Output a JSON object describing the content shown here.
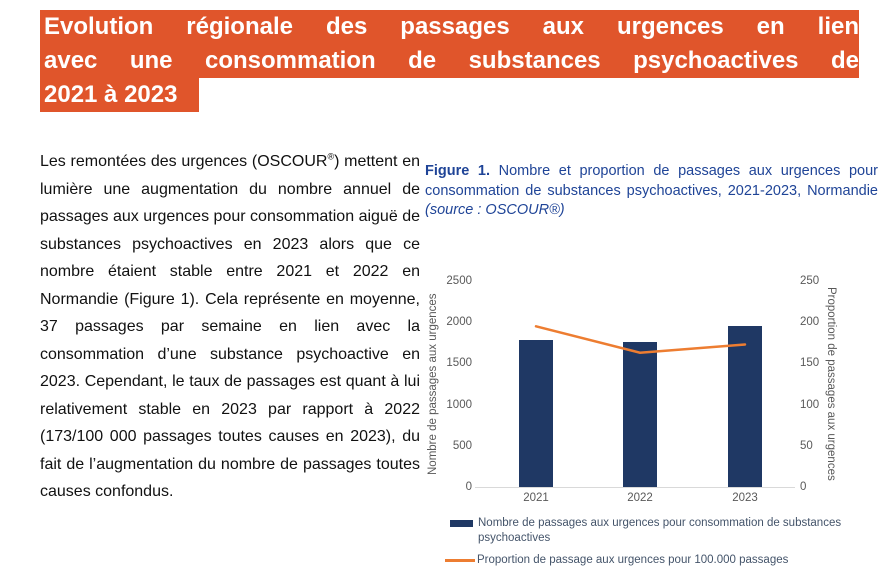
{
  "title": {
    "lines": [
      "Evolution régionale des passages aux urgences en lien",
      "avec une consommation de substances psychoactives de",
      "2021 à 2023"
    ],
    "highlight_color": "#E0552B",
    "text_color": "#FFFFFF"
  },
  "paragraph": {
    "part1": "Les remontées des urgences (OSCOUR",
    "sup": "®",
    "part2": ") mettent en lumière une augmentation du nombre annuel de passages aux urgences pour consommation aiguë de substances psychoactives en 2023 alors que ce nombre étaient stable entre 2021 et 2022 en Normandie (Figure 1). Cela représente en moyenne, 37 passages par semaine en lien avec la consommation d’une substance psychoactive en 2023. Cependant, le taux de passages est quant à lui relativement stable en 2023 par rapport à 2022 (173/100 000 passages toutes causes en 2023), du fait de l’augmentation du nombre de passages toutes causes confondus."
  },
  "figure": {
    "label": "Figure 1.",
    "caption": " Nombre et proportion de passages aux urgences pour consommation de substances psychoactives, 2021-2023, Normandie ",
    "source": "(source : OSCOUR®)",
    "color": "#1F4497"
  },
  "chart_data": {
    "type": "bar",
    "subtype": "combo-bar-line-dual-axis",
    "categories": [
      "2021",
      "2022",
      "2023"
    ],
    "series": [
      {
        "name": "Nombre de passages aux urgences pour consommation de substances psychoactives",
        "type": "bar",
        "axis": "left",
        "color": "#1F3864",
        "values": [
          1780,
          1760,
          1950
        ]
      },
      {
        "name": "Proportion de passage aux urgences pour 100.000 passages",
        "type": "line",
        "axis": "right",
        "color": "#ED7D31",
        "values": [
          195,
          163,
          173
        ]
      }
    ],
    "left_axis": {
      "title": "Nombre de passages aux urgences",
      "min": 0,
      "max": 2500,
      "ticks": [
        0,
        500,
        1000,
        1500,
        2000,
        2500
      ]
    },
    "right_axis": {
      "title": "Proportion de passages aux urgences",
      "min": 0,
      "max": 250,
      "ticks": [
        0,
        50,
        100,
        150,
        200,
        250
      ]
    },
    "legend_position": "bottom",
    "grid": false,
    "tick_color": "#595959",
    "axis_line_color": "#D9D9D9",
    "legend_text_color": "#44546A"
  }
}
